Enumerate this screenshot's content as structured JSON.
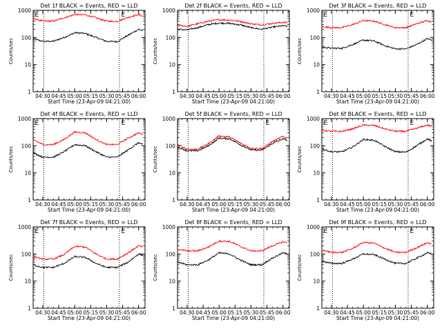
{
  "figure": {
    "colors": {
      "events": "#000000",
      "lld": "#ff0000",
      "axes": "#000000",
      "marker": "#000000"
    }
  },
  "chart_data": [
    {
      "type": "line",
      "title": "Det 1f BLACK = Events, RED = LLD",
      "xlabel": "Start Time (23-Apr-09 04:21:00)",
      "ylabel": "Counts/sec",
      "x_ticks": [
        "04:30",
        "04:45",
        "05:00",
        "05:15",
        "05:30",
        "05:45",
        "06:00"
      ],
      "y_ticks": [
        "1",
        "10",
        "100",
        "1000"
      ],
      "y_scale": "log",
      "ylim": [
        1,
        1000
      ],
      "xlim": [
        "04:21",
        "06:06"
      ],
      "vlines": [
        "04:31",
        "05:42"
      ],
      "markers": [
        {
          "x": "04:22",
          "label": "E"
        },
        {
          "x": "05:43",
          "label": "E"
        }
      ],
      "series": [
        {
          "name": "Events",
          "color": "#000000",
          "x": [
            "04:21",
            "04:30",
            "04:40",
            "04:50",
            "05:00",
            "05:10",
            "05:20",
            "05:30",
            "05:40",
            "05:50",
            "06:00",
            "06:04"
          ],
          "y": [
            90,
            72,
            72,
            100,
            150,
            140,
            100,
            72,
            70,
            120,
            200,
            180
          ]
        },
        {
          "name": "LLD",
          "color": "#ff0000",
          "x": [
            "04:21",
            "04:30",
            "04:40",
            "04:50",
            "05:00",
            "05:10",
            "05:20",
            "05:30",
            "05:40",
            "05:50",
            "06:00",
            "06:04"
          ],
          "y": [
            500,
            400,
            400,
            530,
            700,
            680,
            530,
            400,
            390,
            550,
            700,
            600
          ]
        }
      ]
    },
    {
      "type": "line",
      "title": "Det 2f BLACK = Events, RED = LLD",
      "xlabel": "Start Time (23-Apr-09 04:21:00)",
      "ylabel": "Counts/sec",
      "x_ticks": [
        "04:30",
        "04:45",
        "05:00",
        "05:15",
        "05:30",
        "05:45",
        "06:00"
      ],
      "y_ticks": [
        "1",
        "10",
        "100",
        "1000"
      ],
      "y_scale": "log",
      "ylim": [
        1,
        1000
      ],
      "xlim": [
        "04:21",
        "06:06"
      ],
      "vlines": [
        "04:31",
        "05:42"
      ],
      "markers": [],
      "series": [
        {
          "name": "Events",
          "color": "#000000",
          "x": [
            "04:21",
            "04:30",
            "04:40",
            "04:50",
            "05:00",
            "05:10",
            "05:20",
            "05:30",
            "05:40",
            "05:50",
            "06:00",
            "06:04"
          ],
          "y": [
            200,
            190,
            230,
            300,
            340,
            330,
            290,
            230,
            200,
            240,
            270,
            260
          ]
        },
        {
          "name": "LLD",
          "color": "#ff0000",
          "x": [
            "04:21",
            "04:30",
            "04:40",
            "04:50",
            "05:00",
            "05:10",
            "05:20",
            "05:30",
            "05:40",
            "05:50",
            "06:00",
            "06:04"
          ],
          "y": [
            280,
            260,
            320,
            400,
            450,
            440,
            390,
            320,
            290,
            330,
            360,
            350
          ]
        }
      ]
    },
    {
      "type": "line",
      "title": "Det 3f BLACK = Events, RED = LLD",
      "xlabel": "Start Time (23-Apr-09 04:21:00)",
      "ylabel": "Counts/sec",
      "x_ticks": [
        "04:30",
        "04:45",
        "05:00",
        "05:15",
        "05:30",
        "05:45",
        "06:00"
      ],
      "y_ticks": [
        "1",
        "10",
        "100",
        "1000"
      ],
      "y_scale": "log",
      "ylim": [
        1,
        1000
      ],
      "xlim": [
        "04:21",
        "06:06"
      ],
      "vlines": [
        "04:31",
        "05:42"
      ],
      "markers": [
        {
          "x": "04:22",
          "label": "E"
        },
        {
          "x": "05:43",
          "label": "E"
        }
      ],
      "series": [
        {
          "name": "Events",
          "color": "#000000",
          "x": [
            "04:21",
            "04:30",
            "04:40",
            "04:50",
            "05:00",
            "05:10",
            "05:20",
            "05:30",
            "05:40",
            "05:50",
            "06:00",
            "06:04"
          ],
          "y": [
            45,
            40,
            40,
            55,
            80,
            75,
            50,
            38,
            38,
            55,
            90,
            80
          ]
        },
        {
          "name": "LLD",
          "color": "#ff0000",
          "x": [
            "04:21",
            "04:30",
            "04:40",
            "04:50",
            "05:00",
            "05:10",
            "05:20",
            "05:30",
            "05:40",
            "05:50",
            "06:00",
            "06:04"
          ],
          "y": [
            250,
            230,
            230,
            300,
            420,
            400,
            300,
            230,
            230,
            320,
            420,
            380
          ]
        }
      ]
    },
    {
      "type": "line",
      "title": "Det 4f BLACK = Events, RED = LLD",
      "xlabel": "Start Time (23-Apr-09 04:21:00)",
      "ylabel": "Counts/sec",
      "x_ticks": [
        "04:30",
        "04:45",
        "05:00",
        "05:15",
        "05:30",
        "05:45",
        "06:00"
      ],
      "y_ticks": [
        "1",
        "10",
        "100",
        "1000"
      ],
      "y_scale": "log",
      "ylim": [
        1,
        1000
      ],
      "xlim": [
        "04:21",
        "06:06"
      ],
      "vlines": [
        "04:31",
        "05:42"
      ],
      "markers": [
        {
          "x": "04:22",
          "label": "E"
        },
        {
          "x": "05:43",
          "label": "E"
        }
      ],
      "series": [
        {
          "name": "Events",
          "color": "#000000",
          "x": [
            "04:21",
            "04:30",
            "04:40",
            "04:50",
            "05:00",
            "05:10",
            "05:20",
            "05:30",
            "05:40",
            "05:50",
            "06:00",
            "06:04"
          ],
          "y": [
            55,
            38,
            38,
            60,
            110,
            100,
            60,
            38,
            38,
            70,
            130,
            110
          ]
        },
        {
          "name": "LLD",
          "color": "#ff0000",
          "x": [
            "04:21",
            "04:30",
            "04:40",
            "04:50",
            "05:00",
            "05:10",
            "05:20",
            "05:30",
            "05:40",
            "05:50",
            "06:00",
            "06:04"
          ],
          "y": [
            170,
            110,
            110,
            170,
            320,
            300,
            170,
            110,
            110,
            190,
            300,
            260
          ]
        }
      ]
    },
    {
      "type": "line",
      "title": "Det 5f BLACK = Events, RED = LLD",
      "xlabel": "Start Time (23-Apr-09 04:21:00)",
      "ylabel": "Counts/sec",
      "x_ticks": [
        "04:30",
        "04:45",
        "05:00",
        "05:15",
        "05:30",
        "05:45",
        "06:00"
      ],
      "y_ticks": [
        "1",
        "10",
        "100",
        "1000"
      ],
      "y_scale": "log",
      "ylim": [
        1,
        1000
      ],
      "xlim": [
        "04:21",
        "06:06"
      ],
      "vlines": [
        "04:31",
        "05:42"
      ],
      "markers": [
        {
          "x": "05:43",
          "label": "E"
        }
      ],
      "series": [
        {
          "name": "Events",
          "color": "#000000",
          "x": [
            "04:21",
            "04:30",
            "04:40",
            "04:50",
            "05:00",
            "05:10",
            "05:20",
            "05:30",
            "05:40",
            "05:50",
            "06:00",
            "06:04"
          ],
          "y": [
            90,
            65,
            65,
            100,
            190,
            180,
            110,
            70,
            68,
            120,
            180,
            160
          ]
        },
        {
          "name": "LLD",
          "color": "#ff0000",
          "x": [
            "04:21",
            "04:30",
            "04:40",
            "04:50",
            "05:00",
            "05:10",
            "05:20",
            "05:30",
            "05:40",
            "05:50",
            "06:00",
            "06:04"
          ],
          "y": [
            110,
            75,
            75,
            120,
            230,
            210,
            125,
            80,
            78,
            140,
            220,
            190
          ]
        }
      ]
    },
    {
      "type": "line",
      "title": "Det 6f BLACK = Events, RED = LLD",
      "xlabel": "Start Time (23-Apr-09 04:21:00)",
      "ylabel": "Counts/sec",
      "x_ticks": [
        "04:30",
        "04:45",
        "05:00",
        "05:15",
        "05:30",
        "05:45",
        "06:00"
      ],
      "y_ticks": [
        "1",
        "10",
        "100",
        "1000"
      ],
      "y_scale": "log",
      "ylim": [
        1,
        1000
      ],
      "xlim": [
        "04:21",
        "06:06"
      ],
      "vlines": [
        "04:31",
        "05:42"
      ],
      "markers": [
        {
          "x": "04:22",
          "label": "E"
        },
        {
          "x": "05:43",
          "label": "E"
        }
      ],
      "series": [
        {
          "name": "Events",
          "color": "#000000",
          "x": [
            "04:21",
            "04:30",
            "04:40",
            "04:50",
            "05:00",
            "05:10",
            "05:20",
            "05:30",
            "05:40",
            "05:50",
            "06:00",
            "06:04"
          ],
          "y": [
            75,
            60,
            60,
            90,
            170,
            160,
            95,
            60,
            58,
            100,
            180,
            150
          ]
        },
        {
          "name": "LLD",
          "color": "#ff0000",
          "x": [
            "04:21",
            "04:30",
            "04:40",
            "04:50",
            "05:00",
            "05:10",
            "05:20",
            "05:30",
            "05:40",
            "05:50",
            "06:00",
            "06:04"
          ],
          "y": [
            370,
            340,
            340,
            420,
            580,
            560,
            420,
            340,
            340,
            440,
            580,
            520
          ]
        }
      ]
    },
    {
      "type": "line",
      "title": "Det 7f BLACK = Events, RED = LLD",
      "xlabel": "Start Time (23-Apr-09 04:21:00)",
      "ylabel": "Counts/sec",
      "x_ticks": [
        "04:30",
        "04:45",
        "05:00",
        "05:15",
        "05:30",
        "05:45",
        "06:00"
      ],
      "y_ticks": [
        "1",
        "10",
        "100",
        "1000"
      ],
      "y_scale": "log",
      "ylim": [
        1,
        1000
      ],
      "xlim": [
        "04:21",
        "06:06"
      ],
      "vlines": [
        "04:31",
        "05:42"
      ],
      "markers": [
        {
          "x": "04:22",
          "label": "E"
        },
        {
          "x": "05:43",
          "label": "E"
        }
      ],
      "series": [
        {
          "name": "Events",
          "color": "#000000",
          "x": [
            "04:21",
            "04:30",
            "04:40",
            "04:50",
            "05:00",
            "05:10",
            "05:20",
            "05:30",
            "05:40",
            "05:50",
            "06:00",
            "06:04"
          ],
          "y": [
            40,
            32,
            32,
            45,
            80,
            75,
            45,
            32,
            32,
            50,
            100,
            90
          ]
        },
        {
          "name": "LLD",
          "color": "#ff0000",
          "x": [
            "04:21",
            "04:30",
            "04:40",
            "04:50",
            "05:00",
            "05:10",
            "05:20",
            "05:30",
            "05:40",
            "05:50",
            "06:00",
            "06:04"
          ],
          "y": [
            80,
            65,
            65,
            95,
            190,
            180,
            100,
            65,
            65,
            110,
            200,
            180
          ]
        }
      ]
    },
    {
      "type": "line",
      "title": "Det 8f BLACK = Events, RED = LLD",
      "xlabel": "Start Time (23-Apr-09 04:21:00)",
      "ylabel": "Counts/sec",
      "x_ticks": [
        "04:30",
        "04:45",
        "05:00",
        "05:15",
        "05:30",
        "05:45",
        "06:00"
      ],
      "y_ticks": [
        "1",
        "10",
        "100",
        "1000"
      ],
      "y_scale": "log",
      "ylim": [
        1,
        1000
      ],
      "xlim": [
        "04:21",
        "06:06"
      ],
      "vlines": [
        "04:31",
        "05:42"
      ],
      "markers": [],
      "series": [
        {
          "name": "Events",
          "color": "#000000",
          "x": [
            "04:21",
            "04:30",
            "04:40",
            "04:50",
            "05:00",
            "05:10",
            "05:20",
            "05:30",
            "05:40",
            "05:50",
            "06:00",
            "06:04"
          ],
          "y": [
            50,
            40,
            40,
            60,
            110,
            100,
            60,
            40,
            40,
            70,
            110,
            100
          ]
        },
        {
          "name": "LLD",
          "color": "#ff0000",
          "x": [
            "04:21",
            "04:30",
            "04:40",
            "04:50",
            "05:00",
            "05:10",
            "05:20",
            "05:30",
            "05:40",
            "05:50",
            "06:00",
            "06:04"
          ],
          "y": [
            150,
            130,
            130,
            180,
            300,
            290,
            190,
            130,
            130,
            200,
            280,
            260
          ]
        }
      ]
    },
    {
      "type": "line",
      "title": "Det 9f BLACK = Events, RED = LLD",
      "xlabel": "Start Time (23-Apr-09 04:21:00)",
      "ylabel": "Counts/sec",
      "x_ticks": [
        "04:30",
        "04:45",
        "05:00",
        "05:15",
        "05:30",
        "05:45",
        "06:00"
      ],
      "y_ticks": [
        "1",
        "10",
        "100",
        "1000"
      ],
      "y_scale": "log",
      "ylim": [
        1,
        1000
      ],
      "xlim": [
        "04:21",
        "06:06"
      ],
      "vlines": [
        "04:31",
        "05:42"
      ],
      "markers": [
        {
          "x": "04:22",
          "label": "E"
        },
        {
          "x": "05:43",
          "label": "E"
        }
      ],
      "series": [
        {
          "name": "Events",
          "color": "#000000",
          "x": [
            "04:21",
            "04:30",
            "04:40",
            "04:50",
            "05:00",
            "05:10",
            "05:20",
            "05:30",
            "05:40",
            "05:50",
            "06:00",
            "06:04"
          ],
          "y": [
            55,
            45,
            45,
            65,
            100,
            95,
            65,
            45,
            45,
            70,
            110,
            100
          ]
        },
        {
          "name": "LLD",
          "color": "#ff0000",
          "x": [
            "04:21",
            "04:30",
            "04:40",
            "04:50",
            "05:00",
            "05:10",
            "05:20",
            "05:30",
            "05:40",
            "05:50",
            "06:00",
            "06:04"
          ],
          "y": [
            140,
            115,
            115,
            160,
            270,
            250,
            165,
            115,
            115,
            170,
            260,
            240
          ]
        }
      ]
    }
  ]
}
